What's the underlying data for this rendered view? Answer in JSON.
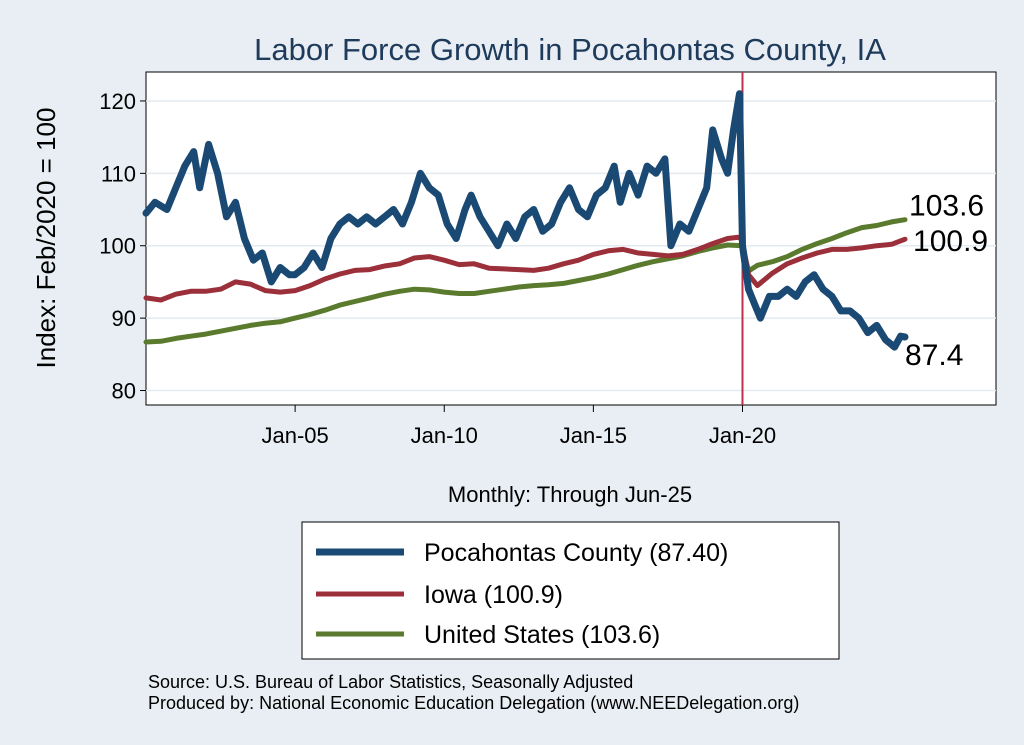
{
  "chart_data": {
    "type": "line",
    "title": "Labor Force Growth in Pocahontas  County, IA",
    "ylabel": "Index: Feb/2020 = 100",
    "xlabel": "Monthly: Through Jun-25",
    "ylim": [
      78,
      124
    ],
    "yticks": [
      80,
      90,
      100,
      110,
      120
    ],
    "ytick_labels": [
      "80",
      "90",
      "100",
      "110",
      "120"
    ],
    "xlim": [
      2000.0,
      2028.5
    ],
    "xticks": [
      2005,
      2010,
      2015,
      2020
    ],
    "xtick_labels": [
      "Jan-05",
      "Jan-10",
      "Jan-15",
      "Jan-20"
    ],
    "vline_x": 2020.0,
    "grid": true,
    "legend_position": "bottom",
    "series": [
      {
        "name": "Pocahontas  County (87.40)",
        "color": "#1a4a74",
        "end_label": "87.4",
        "points": [
          [
            2000.0,
            104.5
          ],
          [
            2000.3,
            106
          ],
          [
            2000.7,
            105
          ],
          [
            2001.0,
            108
          ],
          [
            2001.3,
            111
          ],
          [
            2001.6,
            113
          ],
          [
            2001.8,
            108
          ],
          [
            2002.1,
            114
          ],
          [
            2002.4,
            110
          ],
          [
            2002.7,
            104
          ],
          [
            2003.0,
            106
          ],
          [
            2003.3,
            101
          ],
          [
            2003.6,
            98
          ],
          [
            2003.9,
            99
          ],
          [
            2004.2,
            95
          ],
          [
            2004.5,
            97
          ],
          [
            2004.8,
            96
          ],
          [
            2005.0,
            96
          ],
          [
            2005.3,
            97
          ],
          [
            2005.6,
            99
          ],
          [
            2005.9,
            97
          ],
          [
            2006.2,
            101
          ],
          [
            2006.5,
            103
          ],
          [
            2006.8,
            104
          ],
          [
            2007.1,
            103
          ],
          [
            2007.4,
            104
          ],
          [
            2007.7,
            103
          ],
          [
            2008.0,
            104
          ],
          [
            2008.3,
            105
          ],
          [
            2008.6,
            103
          ],
          [
            2008.9,
            106
          ],
          [
            2009.2,
            110
          ],
          [
            2009.5,
            108
          ],
          [
            2009.8,
            107
          ],
          [
            2010.1,
            103
          ],
          [
            2010.4,
            101
          ],
          [
            2010.7,
            105
          ],
          [
            2010.9,
            107
          ],
          [
            2011.2,
            104
          ],
          [
            2011.5,
            102
          ],
          [
            2011.8,
            100
          ],
          [
            2012.1,
            103
          ],
          [
            2012.4,
            101
          ],
          [
            2012.7,
            104
          ],
          [
            2013.0,
            105
          ],
          [
            2013.3,
            102
          ],
          [
            2013.6,
            103
          ],
          [
            2013.9,
            106
          ],
          [
            2014.2,
            108
          ],
          [
            2014.5,
            105
          ],
          [
            2014.8,
            104
          ],
          [
            2015.1,
            107
          ],
          [
            2015.4,
            108
          ],
          [
            2015.7,
            111
          ],
          [
            2015.9,
            106
          ],
          [
            2016.2,
            110
          ],
          [
            2016.5,
            107
          ],
          [
            2016.8,
            111
          ],
          [
            2017.1,
            110
          ],
          [
            2017.4,
            112
          ],
          [
            2017.6,
            100
          ],
          [
            2017.9,
            103
          ],
          [
            2018.2,
            102
          ],
          [
            2018.5,
            105
          ],
          [
            2018.8,
            108
          ],
          [
            2019.0,
            116
          ],
          [
            2019.3,
            112
          ],
          [
            2019.5,
            110
          ],
          [
            2019.7,
            116
          ],
          [
            2019.9,
            121
          ],
          [
            2020.0,
            100
          ],
          [
            2020.2,
            94
          ],
          [
            2020.4,
            92
          ],
          [
            2020.6,
            90
          ],
          [
            2020.9,
            93
          ],
          [
            2021.2,
            93
          ],
          [
            2021.5,
            94
          ],
          [
            2021.8,
            93
          ],
          [
            2022.1,
            95
          ],
          [
            2022.4,
            96
          ],
          [
            2022.7,
            94
          ],
          [
            2023.0,
            93
          ],
          [
            2023.3,
            91
          ],
          [
            2023.6,
            91
          ],
          [
            2023.9,
            90
          ],
          [
            2024.2,
            88
          ],
          [
            2024.5,
            89
          ],
          [
            2024.8,
            87
          ],
          [
            2025.1,
            86
          ],
          [
            2025.3,
            87.5
          ],
          [
            2025.45,
            87.4
          ]
        ]
      },
      {
        "name": "Iowa (100.9)",
        "color": "#9b2f3a",
        "end_label": "100.9",
        "points": [
          [
            2000.0,
            92.8
          ],
          [
            2000.5,
            92.5
          ],
          [
            2001.0,
            93.3
          ],
          [
            2001.5,
            93.7
          ],
          [
            2002.0,
            93.7
          ],
          [
            2002.5,
            94
          ],
          [
            2003.0,
            95
          ],
          [
            2003.5,
            94.7
          ],
          [
            2004.0,
            93.8
          ],
          [
            2004.5,
            93.6
          ],
          [
            2005.0,
            93.8
          ],
          [
            2005.5,
            94.5
          ],
          [
            2006.0,
            95.4
          ],
          [
            2006.5,
            96.1
          ],
          [
            2007.0,
            96.6
          ],
          [
            2007.5,
            96.7
          ],
          [
            2008.0,
            97.2
          ],
          [
            2008.5,
            97.5
          ],
          [
            2009.0,
            98.3
          ],
          [
            2009.5,
            98.5
          ],
          [
            2010.0,
            98.0
          ],
          [
            2010.5,
            97.4
          ],
          [
            2011.0,
            97.5
          ],
          [
            2011.5,
            96.9
          ],
          [
            2012.0,
            96.8
          ],
          [
            2012.5,
            96.7
          ],
          [
            2013.0,
            96.6
          ],
          [
            2013.5,
            96.9
          ],
          [
            2014.0,
            97.5
          ],
          [
            2014.5,
            98.0
          ],
          [
            2015.0,
            98.8
          ],
          [
            2015.5,
            99.3
          ],
          [
            2016.0,
            99.5
          ],
          [
            2016.5,
            99.0
          ],
          [
            2017.0,
            98.8
          ],
          [
            2017.5,
            98.6
          ],
          [
            2018.0,
            98.8
          ],
          [
            2018.5,
            99.5
          ],
          [
            2019.0,
            100.3
          ],
          [
            2019.5,
            101.0
          ],
          [
            2019.9,
            101.2
          ],
          [
            2020.0,
            100.5
          ],
          [
            2020.2,
            96.0
          ],
          [
            2020.5,
            94.5
          ],
          [
            2021.0,
            96.2
          ],
          [
            2021.5,
            97.5
          ],
          [
            2022.0,
            98.3
          ],
          [
            2022.5,
            99.0
          ],
          [
            2023.0,
            99.5
          ],
          [
            2023.5,
            99.5
          ],
          [
            2024.0,
            99.7
          ],
          [
            2024.5,
            100.0
          ],
          [
            2025.0,
            100.2
          ],
          [
            2025.45,
            100.9
          ]
        ]
      },
      {
        "name": "United States (103.6)",
        "color": "#5a7a2e",
        "end_label": "103.6",
        "points": [
          [
            2000.0,
            86.7
          ],
          [
            2000.5,
            86.8
          ],
          [
            2001.0,
            87.2
          ],
          [
            2001.5,
            87.5
          ],
          [
            2002.0,
            87.8
          ],
          [
            2002.5,
            88.2
          ],
          [
            2003.0,
            88.6
          ],
          [
            2003.5,
            89.0
          ],
          [
            2004.0,
            89.3
          ],
          [
            2004.5,
            89.5
          ],
          [
            2005.0,
            90.0
          ],
          [
            2005.5,
            90.5
          ],
          [
            2006.0,
            91.1
          ],
          [
            2006.5,
            91.8
          ],
          [
            2007.0,
            92.3
          ],
          [
            2007.5,
            92.8
          ],
          [
            2008.0,
            93.3
          ],
          [
            2008.5,
            93.7
          ],
          [
            2009.0,
            94.0
          ],
          [
            2009.5,
            93.9
          ],
          [
            2010.0,
            93.6
          ],
          [
            2010.5,
            93.4
          ],
          [
            2011.0,
            93.4
          ],
          [
            2011.5,
            93.7
          ],
          [
            2012.0,
            94.0
          ],
          [
            2012.5,
            94.3
          ],
          [
            2013.0,
            94.5
          ],
          [
            2013.5,
            94.6
          ],
          [
            2014.0,
            94.8
          ],
          [
            2014.5,
            95.2
          ],
          [
            2015.0,
            95.6
          ],
          [
            2015.5,
            96.1
          ],
          [
            2016.0,
            96.7
          ],
          [
            2016.5,
            97.3
          ],
          [
            2017.0,
            97.8
          ],
          [
            2017.5,
            98.2
          ],
          [
            2018.0,
            98.6
          ],
          [
            2018.5,
            99.2
          ],
          [
            2019.0,
            99.7
          ],
          [
            2019.5,
            100.1
          ],
          [
            2020.0,
            100.0
          ],
          [
            2020.2,
            96.5
          ],
          [
            2020.5,
            97.3
          ],
          [
            2021.0,
            97.8
          ],
          [
            2021.5,
            98.5
          ],
          [
            2022.0,
            99.5
          ],
          [
            2022.5,
            100.3
          ],
          [
            2023.0,
            101.0
          ],
          [
            2023.5,
            101.8
          ],
          [
            2024.0,
            102.5
          ],
          [
            2024.5,
            102.8
          ],
          [
            2025.0,
            103.3
          ],
          [
            2025.45,
            103.6
          ]
        ]
      }
    ]
  },
  "footer": {
    "source": "Source: U.S. Bureau of Labor Statistics, Seasonally Adjusted",
    "producer": "Produced by: National Economic Education Delegation (www.NEEDelegation.org)"
  }
}
